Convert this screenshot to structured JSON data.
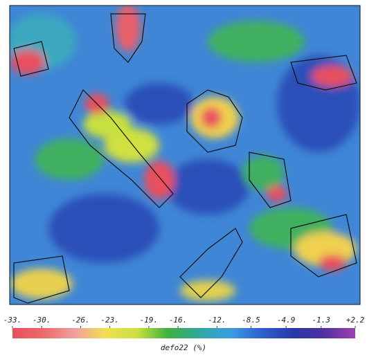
{
  "chart_data": {
    "type": "heatmap",
    "colorbar": {
      "label": "defo22 (%)",
      "lim": [
        -33,
        2.2
      ],
      "ticks": [
        {
          "value": -33,
          "label": "-33."
        },
        {
          "value": -30,
          "label": "-30."
        },
        {
          "value": -26,
          "label": "-26."
        },
        {
          "value": -23,
          "label": "-23."
        },
        {
          "value": -19,
          "label": "-19."
        },
        {
          "value": -16,
          "label": "-16."
        },
        {
          "value": -12,
          "label": "-12."
        },
        -8.5,
        -4.9,
        -1.3,
        {
          "value": 2.2,
          "label": "+2.2"
        }
      ],
      "colors": [
        "#e8505e",
        "#ec6a6a",
        "#f0a0a0",
        "#f2e050",
        "#c8e040",
        "#40b040",
        "#30a8a0",
        "#3a9ee0",
        "#3060d0",
        "#2838a8",
        "#5030a0",
        "#a040b0"
      ]
    }
  }
}
